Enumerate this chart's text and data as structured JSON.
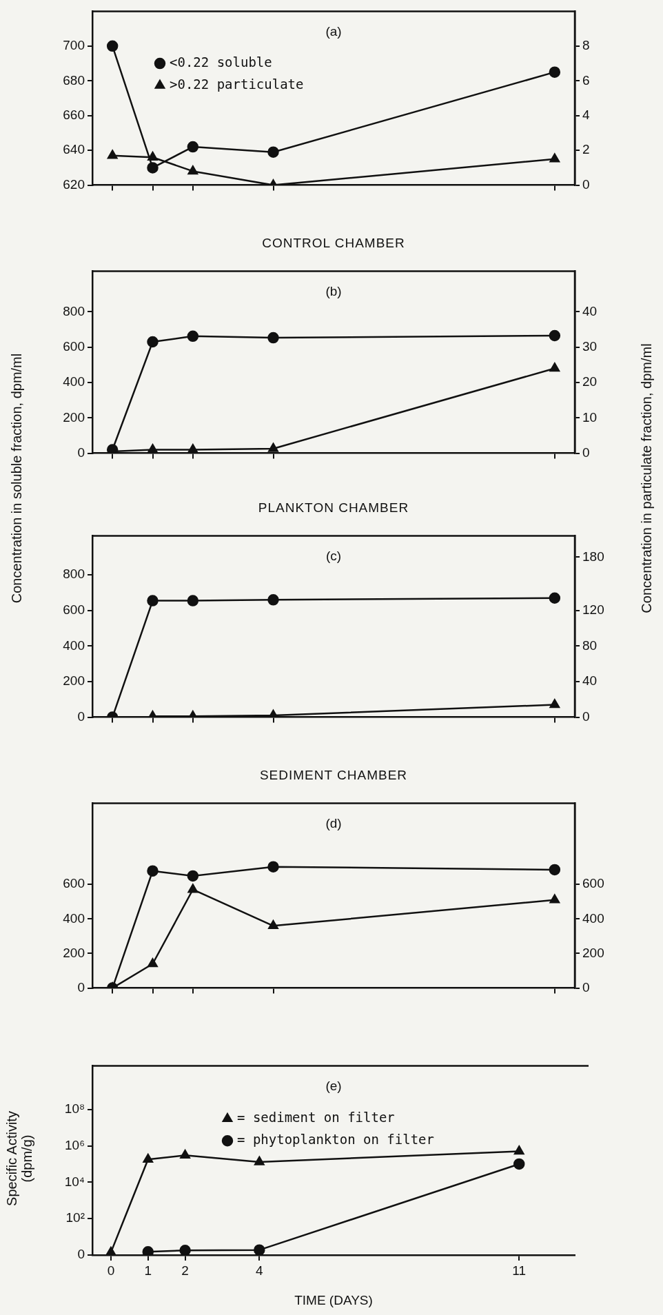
{
  "chart_data": [
    {
      "type": "line",
      "categories": [
        null,
        null,
        null,
        null,
        null,
        null,
        null,
        null,
        null,
        null,
        null,
        null
      ],
      "tick_labels": "y",
      "ylim": [
        620,
        720
      ],
      "yticks": [
        620,
        640,
        660,
        680,
        700
      ],
      "y2lim": [
        0,
        10
      ],
      "y2ticks": [
        0,
        2,
        4,
        6,
        8
      ],
      "series": [
        {
          "name": "<0.22 soluble",
          "color": "#111111",
          "marker": "circle",
          "values": [
            700,
            630,
            642,
            null,
            639,
            null,
            null,
            null,
            null,
            null,
            null,
            685
          ]
        },
        {
          "name": ">0.22 particulate",
          "color": "#111111",
          "marker": "triangle",
          "axis": "y2",
          "values": [
            1.7,
            1.6,
            0.8,
            null,
            0,
            null,
            null,
            null,
            null,
            null,
            null,
            1.5
          ]
        }
      ],
      "legend": "top left",
      "annotations": [
        "(a)"
      ]
    },
    {
      "type": "line",
      "title": "CONTROL CHAMBER",
      "ylabel": "Concentration in soluble fraction, dpm/ml",
      "y2label": "Concentration in particulate fraction, dpm/ml",
      "categories": [
        null,
        null,
        null,
        null,
        null,
        null,
        null,
        null,
        null,
        null,
        null,
        null
      ],
      "tick_labels": "y",
      "ylim": [
        0,
        1030
      ],
      "yticks": [
        0,
        200,
        400,
        600,
        800
      ],
      "y2lim": [
        0,
        51.5
      ],
      "y2ticks": [
        0,
        10,
        20,
        30,
        40
      ],
      "series": [
        {
          "color": "#111111",
          "marker": "circle",
          "values": [
            20,
            630,
            662,
            null,
            653,
            null,
            null,
            null,
            null,
            null,
            null,
            665
          ]
        },
        {
          "color": "#111111",
          "marker": "triangle",
          "axis": "y2",
          "values": [
            0.5,
            1,
            1,
            null,
            1.3,
            null,
            null,
            null,
            null,
            null,
            null,
            24
          ]
        }
      ],
      "annotations": [
        "(b)"
      ]
    },
    {
      "type": "line",
      "title": "PLANKTON CHAMBER",
      "categories": [
        null,
        null,
        null,
        null,
        null,
        null,
        null,
        null,
        null,
        null,
        null,
        null
      ],
      "tick_labels": "y",
      "ylim": [
        0,
        1020
      ],
      "yticks": [
        0,
        200,
        400,
        600,
        800
      ],
      "y2lim": [
        0,
        204
      ],
      "y2ticks": [
        0,
        40,
        80,
        120,
        180
      ],
      "series": [
        {
          "color": "#111111",
          "marker": "circle",
          "values": [
            0,
            655,
            655,
            null,
            660,
            null,
            null,
            null,
            null,
            null,
            null,
            670
          ]
        },
        {
          "color": "#111111",
          "marker": "triangle",
          "axis": "y2",
          "values": [
            null,
            1,
            1,
            null,
            2,
            null,
            null,
            null,
            null,
            null,
            null,
            14
          ]
        }
      ],
      "annotations": [
        "(c)"
      ]
    },
    {
      "type": "line",
      "title": "SEDIMENT CHAMBER",
      "categories": [
        null,
        null,
        null,
        null,
        null,
        null,
        null,
        null,
        null,
        null,
        null,
        null
      ],
      "tick_labels": "y",
      "ylim": [
        0,
        1070
      ],
      "yticks": [
        0,
        200,
        400,
        600
      ],
      "y2lim": [
        0,
        1070
      ],
      "y2ticks": [
        0,
        200,
        400,
        600
      ],
      "series": [
        {
          "color": "#111111",
          "marker": "circle",
          "values": [
            0,
            678,
            649,
            null,
            702,
            null,
            null,
            null,
            null,
            null,
            null,
            685
          ]
        },
        {
          "color": "#111111",
          "marker": "triangle",
          "axis": "y2",
          "values": [
            0,
            140,
            570,
            null,
            360,
            null,
            null,
            null,
            null,
            null,
            null,
            510
          ]
        }
      ],
      "annotations": [
        "(d)"
      ]
    },
    {
      "type": "line",
      "xlabel": "TIME (DAYS)",
      "ylabel": "Specific Activity (dpm/g)",
      "x": [
        0,
        1,
        2,
        4,
        11
      ],
      "xlim": [
        -0.5,
        12.5
      ],
      "xticks": [
        0,
        1,
        2,
        4,
        11
      ],
      "log": "y",
      "ylim": [
        0,
        25000000000
      ],
      "yticks": [
        0,
        {
          "value": 100,
          "label": "10²"
        },
        {
          "value": 10000,
          "label": "10⁴"
        },
        {
          "value": 1000000,
          "label": "10⁶"
        },
        {
          "value": 100000000,
          "label": "10⁸"
        }
      ],
      "series": [
        {
          "name": "= sediment on filter",
          "color": "#111111",
          "marker": "triangle",
          "values": [
            1.4,
            180000,
            300000,
            130000,
            500000
          ]
        },
        {
          "name": "= phytoplankton on filter",
          "color": "#111111",
          "marker": "circle",
          "values": [
            null,
            1.5,
            1.8,
            1.9,
            100000
          ]
        }
      ],
      "legend": "top",
      "annotations": [
        "(e)"
      ]
    }
  ]
}
